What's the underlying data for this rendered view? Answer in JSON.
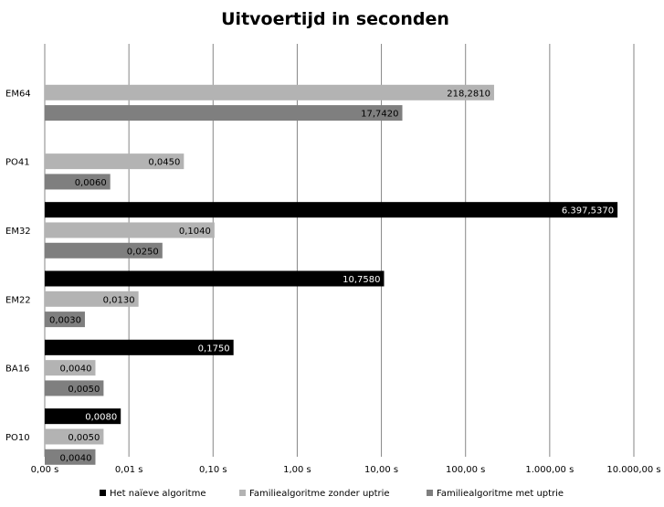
{
  "chart_data": {
    "type": "bar",
    "orientation": "horizontal",
    "title": "Uitvoertijd in seconden",
    "xlabel": "",
    "ylabel": "",
    "x_scale": "log",
    "xlim": [
      0.001,
      10000
    ],
    "x_tick_labels": [
      "0,00 s",
      "0,01 s",
      "0,10 s",
      "1,00 s",
      "10,00 s",
      "100,00 s",
      "1.000,00 s",
      "10.000,00 s"
    ],
    "grid": "vertical",
    "legend_position": "bottom",
    "categories": [
      "EM64",
      "PO41",
      "EM32",
      "EM22",
      "BA16",
      "PO10"
    ],
    "series": [
      {
        "name": "Het naïeve algoritme",
        "color": "#000000",
        "values": [
          null,
          null,
          6397.537,
          10.758,
          0.175,
          0.008
        ],
        "labels": [
          null,
          null,
          "6.397,5370",
          "10,7580",
          "0,1750",
          "0,0080"
        ]
      },
      {
        "name": "Familiealgoritme zonder uptrie",
        "color": "#b3b3b3",
        "values": [
          218.281,
          0.045,
          0.104,
          0.013,
          0.004,
          0.005
        ],
        "labels": [
          "218,2810",
          "0,0450",
          "0,1040",
          "0,0130",
          "0,0040",
          "0,0050"
        ]
      },
      {
        "name": "Familiealgoritme met uptrie",
        "color": "#7f7f7f",
        "values": [
          17.742,
          0.006,
          0.025,
          0.003,
          0.005,
          0.004
        ],
        "labels": [
          "17,7420",
          "0,0060",
          "0,0250",
          "0,0030",
          "0,0050",
          "0,0040"
        ]
      }
    ]
  }
}
